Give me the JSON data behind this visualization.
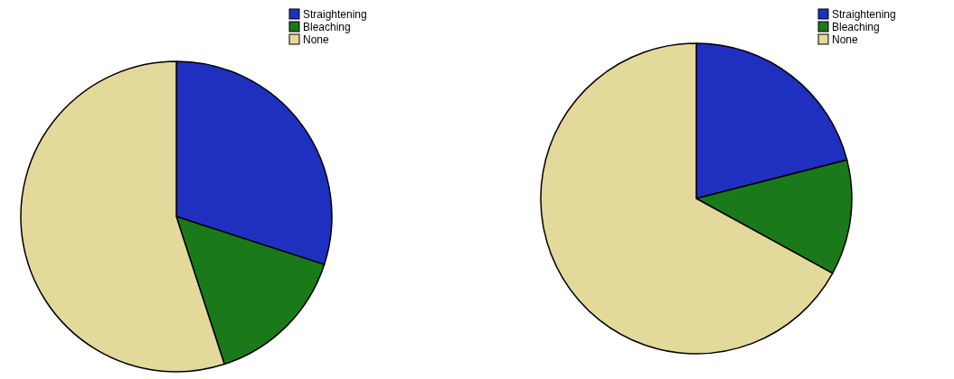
{
  "chart_data": [
    {
      "type": "pie",
      "categories": [
        "Straightening",
        "Bleaching",
        "None"
      ],
      "values": [
        30,
        15,
        55
      ],
      "colors": [
        "#1f2fbf",
        "#1a7a1a",
        "#e3d99a"
      ],
      "legend": "top right"
    },
    {
      "type": "pie",
      "categories": [
        "Straightening",
        "Bleaching",
        "None"
      ],
      "values": [
        21,
        12,
        67
      ],
      "colors": [
        "#1f2fbf",
        "#1a7a1a",
        "#e3d99a"
      ],
      "legend": "top right"
    }
  ]
}
